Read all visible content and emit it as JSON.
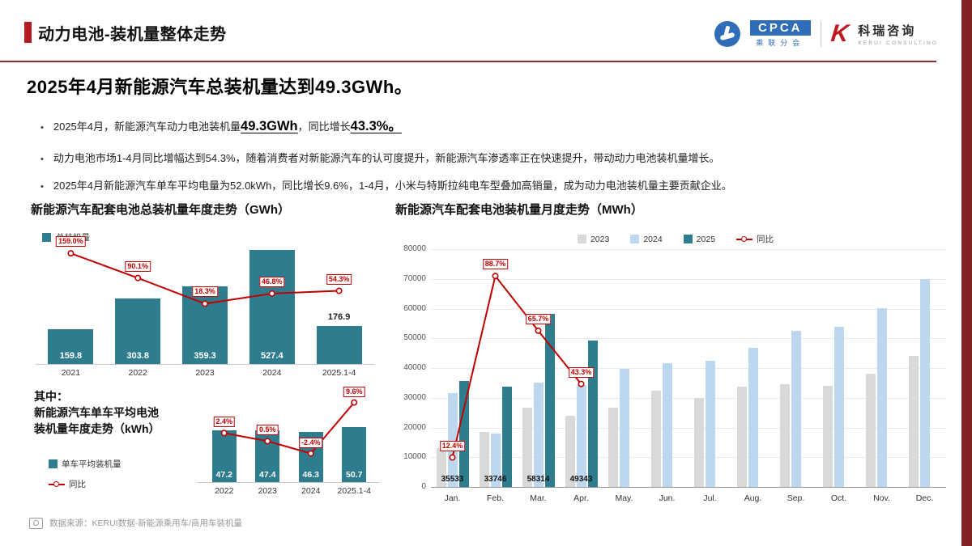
{
  "header": {
    "title": "动力电池-装机量整体走势"
  },
  "logos": {
    "cpca_text": "CPCA",
    "cpca_sub": "乘联分会",
    "kerui_mark": "K",
    "kerui_text": "科瑞咨询",
    "kerui_sub": "KERUI CONSULTING"
  },
  "headline": "2025年4月新能源汽车总装机量达到49.3GWh。",
  "bullets": {
    "b1_pre": "2025年4月，新能源汽车动力电池装机量",
    "b1_v1": "49.3GWh",
    "b1_mid": "，同比增长",
    "b1_v2": "43.3%",
    "b1_post": "。",
    "b2": "动力电池市场1-4月同比增幅达到54.3%，随着消费者对新能源汽车的认可度提升，新能源汽车渗透率正在快速提升，带动动力电池装机量增长。",
    "b3": "2025年4月新能源汽车单车平均电量为52.0kWh，同比增长9.6%，1-4月，小米与特斯拉纯电车型叠加高销量，成为动力电池装机量主要贡献企业。"
  },
  "footer": {
    "source": "数据来源：KERUI数据-新能源乘用车/商用车装机量"
  },
  "colors": {
    "teal": "#2e7d8e",
    "red": "#c00000",
    "gray2023": "#d9d9d9",
    "blue2024": "#bdd7ee",
    "maroon": "#7f2327"
  },
  "chart_data": [
    {
      "id": "yearly-gwh",
      "type": "bar",
      "title": "新能源汽车配套电池总装机量年度走势（GWh）",
      "legend": "总装机量",
      "categories": [
        "2021",
        "2022",
        "2023",
        "2024",
        "2025.1-4"
      ],
      "bars": [
        159.8,
        303.8,
        359.3,
        527.4,
        176.9
      ],
      "bar_labels": [
        "159.8",
        "303.8",
        "359.3",
        "527.4",
        "176.9"
      ],
      "line_name": "同比",
      "line_percent": [
        159.0,
        90.1,
        18.3,
        46.8,
        54.3
      ],
      "line_labels": [
        "159.0%",
        "90.1%",
        "18.3%",
        "46.8%",
        "54.3%"
      ],
      "ylim": [
        0,
        560
      ],
      "line_axis": [
        -150,
        200
      ],
      "label_outside_index": 4,
      "xlabel": "",
      "ylabel": "GWh"
    },
    {
      "id": "avg-kwh",
      "type": "bar",
      "title_lines": [
        "其中：",
        "新能源汽车单车平均电池",
        "装机量年度走势（kWh）"
      ],
      "legend_bar": "单车平均装机量",
      "legend_line": "同比",
      "categories": [
        "2022",
        "2023",
        "2024",
        "2025.1-4"
      ],
      "bars": [
        47.2,
        47.4,
        46.3,
        50.7
      ],
      "bar_labels": [
        "47.2",
        "47.4",
        "46.3",
        "50.7"
      ],
      "line_percent": [
        2.4,
        0.5,
        -2.4,
        9.6
      ],
      "line_labels": [
        "2.4%",
        "0.5%",
        "-2.4%",
        "9.6%"
      ],
      "ylim": [
        0,
        52
      ],
      "line_axis": [
        -8,
        12
      ],
      "xlabel": "",
      "ylabel": "kWh"
    },
    {
      "id": "monthly-mwh",
      "type": "bar",
      "title": "新能源汽车配套电池装机量月度走势（MWh）",
      "categories": [
        "Jan.",
        "Feb.",
        "Mar.",
        "Apr.",
        "May.",
        "Jun.",
        "Jul.",
        "Aug.",
        "Sep.",
        "Oct.",
        "Nov.",
        "Dec."
      ],
      "series": [
        {
          "name": "2023",
          "color": "#d9d9d9",
          "values": [
            13000,
            18500,
            26800,
            24000,
            26800,
            32300,
            30000,
            33800,
            34500,
            34000,
            38200,
            44000
          ]
        },
        {
          "name": "2024",
          "color": "#bdd7ee",
          "values": [
            31600,
            17900,
            35200,
            34400,
            39800,
            41700,
            42500,
            46800,
            52500,
            54000,
            60200,
            69800
          ]
        },
        {
          "name": "2025",
          "color": "#2e7d8e",
          "values": [
            35533,
            33746,
            58314,
            49343
          ]
        }
      ],
      "line": {
        "name": "同比",
        "color": "#c00000",
        "percent": [
          12.4,
          88.7,
          65.7,
          43.3
        ],
        "labels": [
          "12.4%",
          "88.7%",
          "65.7%",
          "43.3%"
        ]
      },
      "value_labels": [
        "35533",
        "33746",
        "58314",
        "49343"
      ],
      "ylim": [
        0,
        80000
      ],
      "ytick_step": 10000,
      "line_axis": [
        0,
        100
      ],
      "grid": true,
      "legend_position": "top",
      "xlabel": "",
      "ylabel": "MWh"
    }
  ]
}
